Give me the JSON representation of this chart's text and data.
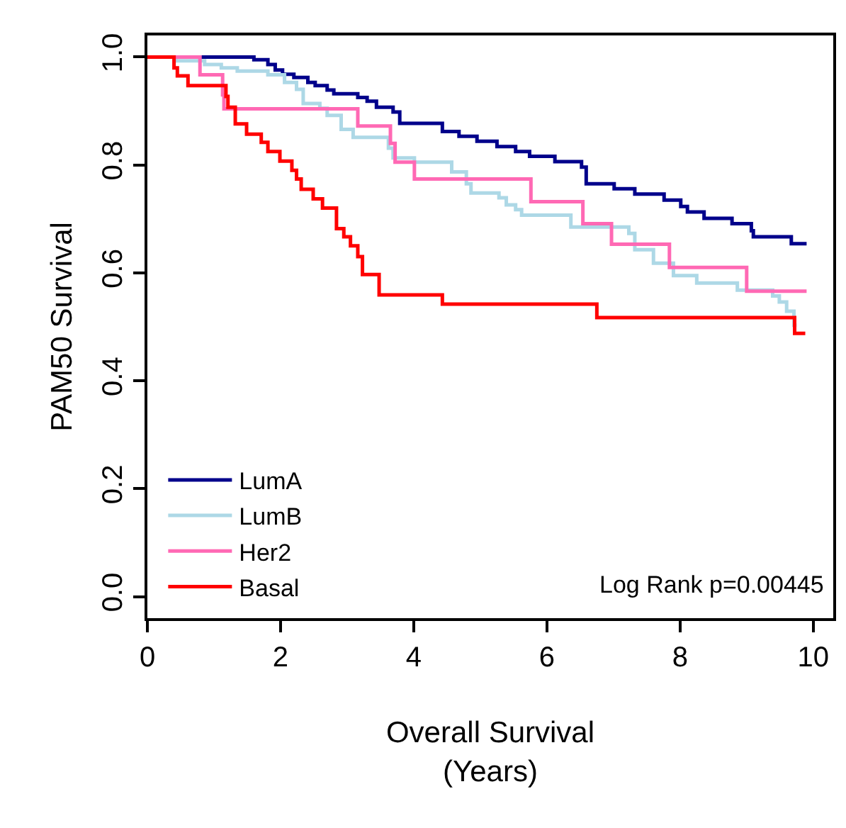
{
  "chart_data": {
    "type": "step",
    "xlabel": "Overall Survival\n(Years)",
    "ylabel": "PAM50 Survival",
    "xlim": [
      0,
      10.3
    ],
    "xticks": [
      0,
      2,
      4,
      6,
      8,
      10
    ],
    "ylim": [
      -0.04,
      1.04
    ],
    "yticks": [
      {
        "value": 0,
        "label": "0.0"
      },
      0.2,
      0.4,
      0.6,
      0.8,
      {
        "value": 1,
        "label": "1.0"
      }
    ],
    "legend": "bottom left",
    "marker": "none",
    "line_style": "solid",
    "annotations": [
      "Log Rank p=0.00445"
    ],
    "series": [
      {
        "name": "LumA",
        "color": "#00008b",
        "x": [
          0,
          1.6,
          1.81,
          1.92,
          2.03,
          2.2,
          2.41,
          2.52,
          2.7,
          2.8,
          3.16,
          3.3,
          3.44,
          3.69,
          3.79,
          4.43,
          4.68,
          4.95,
          5.25,
          5.53,
          5.74,
          6.12,
          6.52,
          6.59,
          7.01,
          7.32,
          7.76,
          8.01,
          8.11,
          8.36,
          8.78,
          9.07,
          9.1,
          9.67,
          9.9
        ],
        "values": [
          1,
          0.995,
          0.986,
          0.976,
          0.968,
          0.962,
          0.953,
          0.947,
          0.939,
          0.932,
          0.925,
          0.918,
          0.907,
          0.898,
          0.877,
          0.862,
          0.853,
          0.844,
          0.834,
          0.825,
          0.816,
          0.806,
          0.796,
          0.765,
          0.756,
          0.746,
          0.735,
          0.723,
          0.713,
          0.701,
          0.691,
          0.678,
          0.667,
          0.654,
          0.654
        ]
      },
      {
        "name": "LumB",
        "color": "#add8e6",
        "x": [
          0,
          0.43,
          0.86,
          1.11,
          1.35,
          1.81,
          2.06,
          2.24,
          2.34,
          2.59,
          2.7,
          2.91,
          3.09,
          3.62,
          3.69,
          4.01,
          4.57,
          4.79,
          4.86,
          5.28,
          5.39,
          5.53,
          5.62,
          6.36,
          7.23,
          7.32,
          7.6,
          7.9,
          8.25,
          8.86,
          9.39,
          9.49,
          9.6,
          9.71,
          9.75
        ],
        "values": [
          1,
          0.993,
          0.986,
          0.98,
          0.974,
          0.967,
          0.953,
          0.94,
          0.914,
          0.905,
          0.892,
          0.866,
          0.851,
          0.831,
          0.813,
          0.805,
          0.787,
          0.765,
          0.748,
          0.739,
          0.726,
          0.717,
          0.707,
          0.685,
          0.673,
          0.643,
          0.618,
          0.595,
          0.581,
          0.568,
          0.557,
          0.546,
          0.529,
          0.503,
          0.503
        ]
      },
      {
        "name": "Her2",
        "color": "#ff69b4",
        "x": [
          0,
          0.79,
          1.13,
          1.15,
          3.16,
          3.65,
          3.72,
          4.01,
          5.76,
          6.54,
          6.97,
          7.84,
          9.0,
          9.9
        ],
        "values": [
          1,
          0.967,
          0.93,
          0.904,
          0.872,
          0.84,
          0.805,
          0.774,
          0.732,
          0.691,
          0.653,
          0.61,
          0.566,
          0.566
        ]
      },
      {
        "name": "Basal",
        "color": "#ff0000",
        "x": [
          0,
          0.4,
          0.45,
          0.61,
          1.18,
          1.21,
          1.32,
          1.49,
          1.71,
          1.81,
          1.99,
          2.17,
          2.24,
          2.31,
          2.49,
          2.63,
          2.84,
          2.95,
          3.05,
          3.16,
          3.23,
          3.48,
          4.43,
          6.75,
          9.72,
          9.88
        ],
        "values": [
          1,
          0.98,
          0.965,
          0.947,
          0.927,
          0.907,
          0.876,
          0.857,
          0.842,
          0.825,
          0.807,
          0.79,
          0.774,
          0.755,
          0.737,
          0.72,
          0.682,
          0.667,
          0.65,
          0.63,
          0.597,
          0.559,
          0.542,
          0.517,
          0.488,
          0.488
        ]
      }
    ]
  }
}
